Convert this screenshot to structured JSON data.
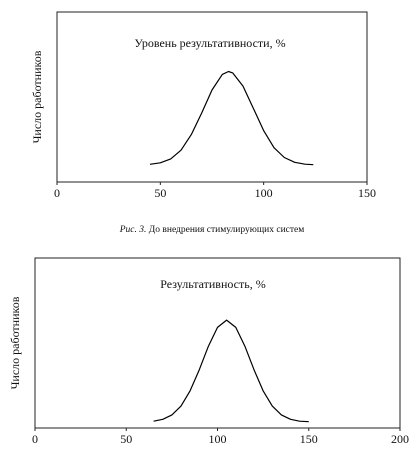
{
  "chart_data": [
    {
      "type": "line",
      "title": "Уровень результативности, %",
      "y_label": "Число работников",
      "x": [
        45,
        50,
        55,
        60,
        65,
        70,
        75,
        80,
        83,
        85,
        90,
        95,
        100,
        105,
        110,
        115,
        120,
        124
      ],
      "values": [
        10.4,
        11.3,
        13.6,
        18.7,
        27.9,
        40.6,
        54.1,
        63.3,
        65,
        64.2,
        56.4,
        43.4,
        30.2,
        20.2,
        14.4,
        11.6,
        10.5,
        10.2
      ],
      "color": "#000000",
      "xlim": [
        0,
        150
      ],
      "xticks": [
        0,
        50,
        100,
        150
      ],
      "ylim": [
        0,
        100
      ]
    },
    {
      "type": "line",
      "title": "Результативность, %",
      "y_label": "Число работников",
      "x": [
        65,
        70,
        75,
        80,
        85,
        90,
        95,
        100,
        105,
        110,
        115,
        120,
        125,
        130,
        135,
        140,
        145,
        150
      ],
      "values": [
        4.0,
        5.1,
        7.7,
        12.9,
        21.9,
        34.3,
        48.1,
        59.2,
        63.5,
        59.2,
        48.1,
        34.3,
        21.9,
        12.9,
        7.7,
        5.1,
        4.0,
        3.7
      ],
      "color": "#000000",
      "xlim": [
        0,
        200
      ],
      "xticks": [
        0,
        50,
        100,
        150,
        200
      ],
      "ylim": [
        0,
        100
      ]
    }
  ],
  "caption": {
    "label": "Рис. 3.",
    "text": "До внедрения стимулирующих систем"
  }
}
